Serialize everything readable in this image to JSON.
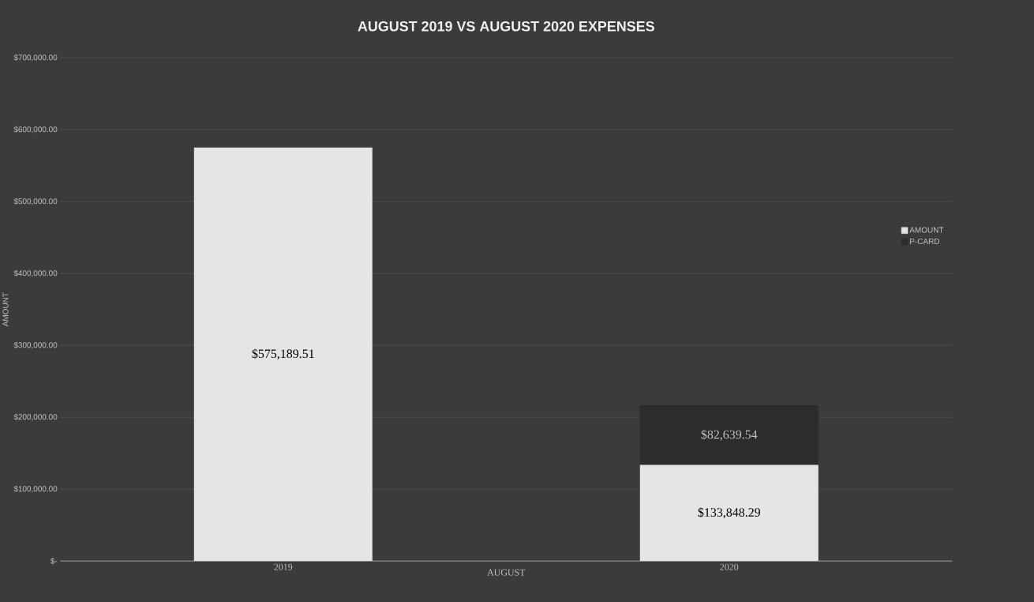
{
  "chart_data": {
    "type": "bar",
    "title": "AUGUST 2019 VS AUGUST 2020 EXPENSES",
    "xlabel": "AUGUST",
    "ylabel": "AMOUNT",
    "categories": [
      "2019",
      "2020"
    ],
    "stacked": true,
    "series": [
      {
        "name": "AMOUNT",
        "color": "#e3e5e6",
        "values": [
          575189.51,
          133848.29
        ],
        "value_labels": [
          "$575,189.51",
          "$133,848.29"
        ]
      },
      {
        "name": "P-CARD",
        "color": "#2a2c2d",
        "values": [
          null,
          82639.54
        ],
        "value_labels": [
          null,
          "$82,639.54"
        ]
      }
    ],
    "ylim": [
      0,
      700000
    ],
    "yticks": [
      {
        "value": 0,
        "label": "$-"
      },
      {
        "value": 100000,
        "label": "$100,000.00"
      },
      {
        "value": 200000,
        "label": "$200,000.00"
      },
      {
        "value": 300000,
        "label": "$300,000.00"
      },
      {
        "value": 400000,
        "label": "$400,000.00"
      },
      {
        "value": 500000,
        "label": "$500,000.00"
      },
      {
        "value": 600000,
        "label": "$600,000.00"
      },
      {
        "value": 700000,
        "label": "$700,000.00"
      }
    ],
    "grid": "y",
    "legend": "right"
  }
}
